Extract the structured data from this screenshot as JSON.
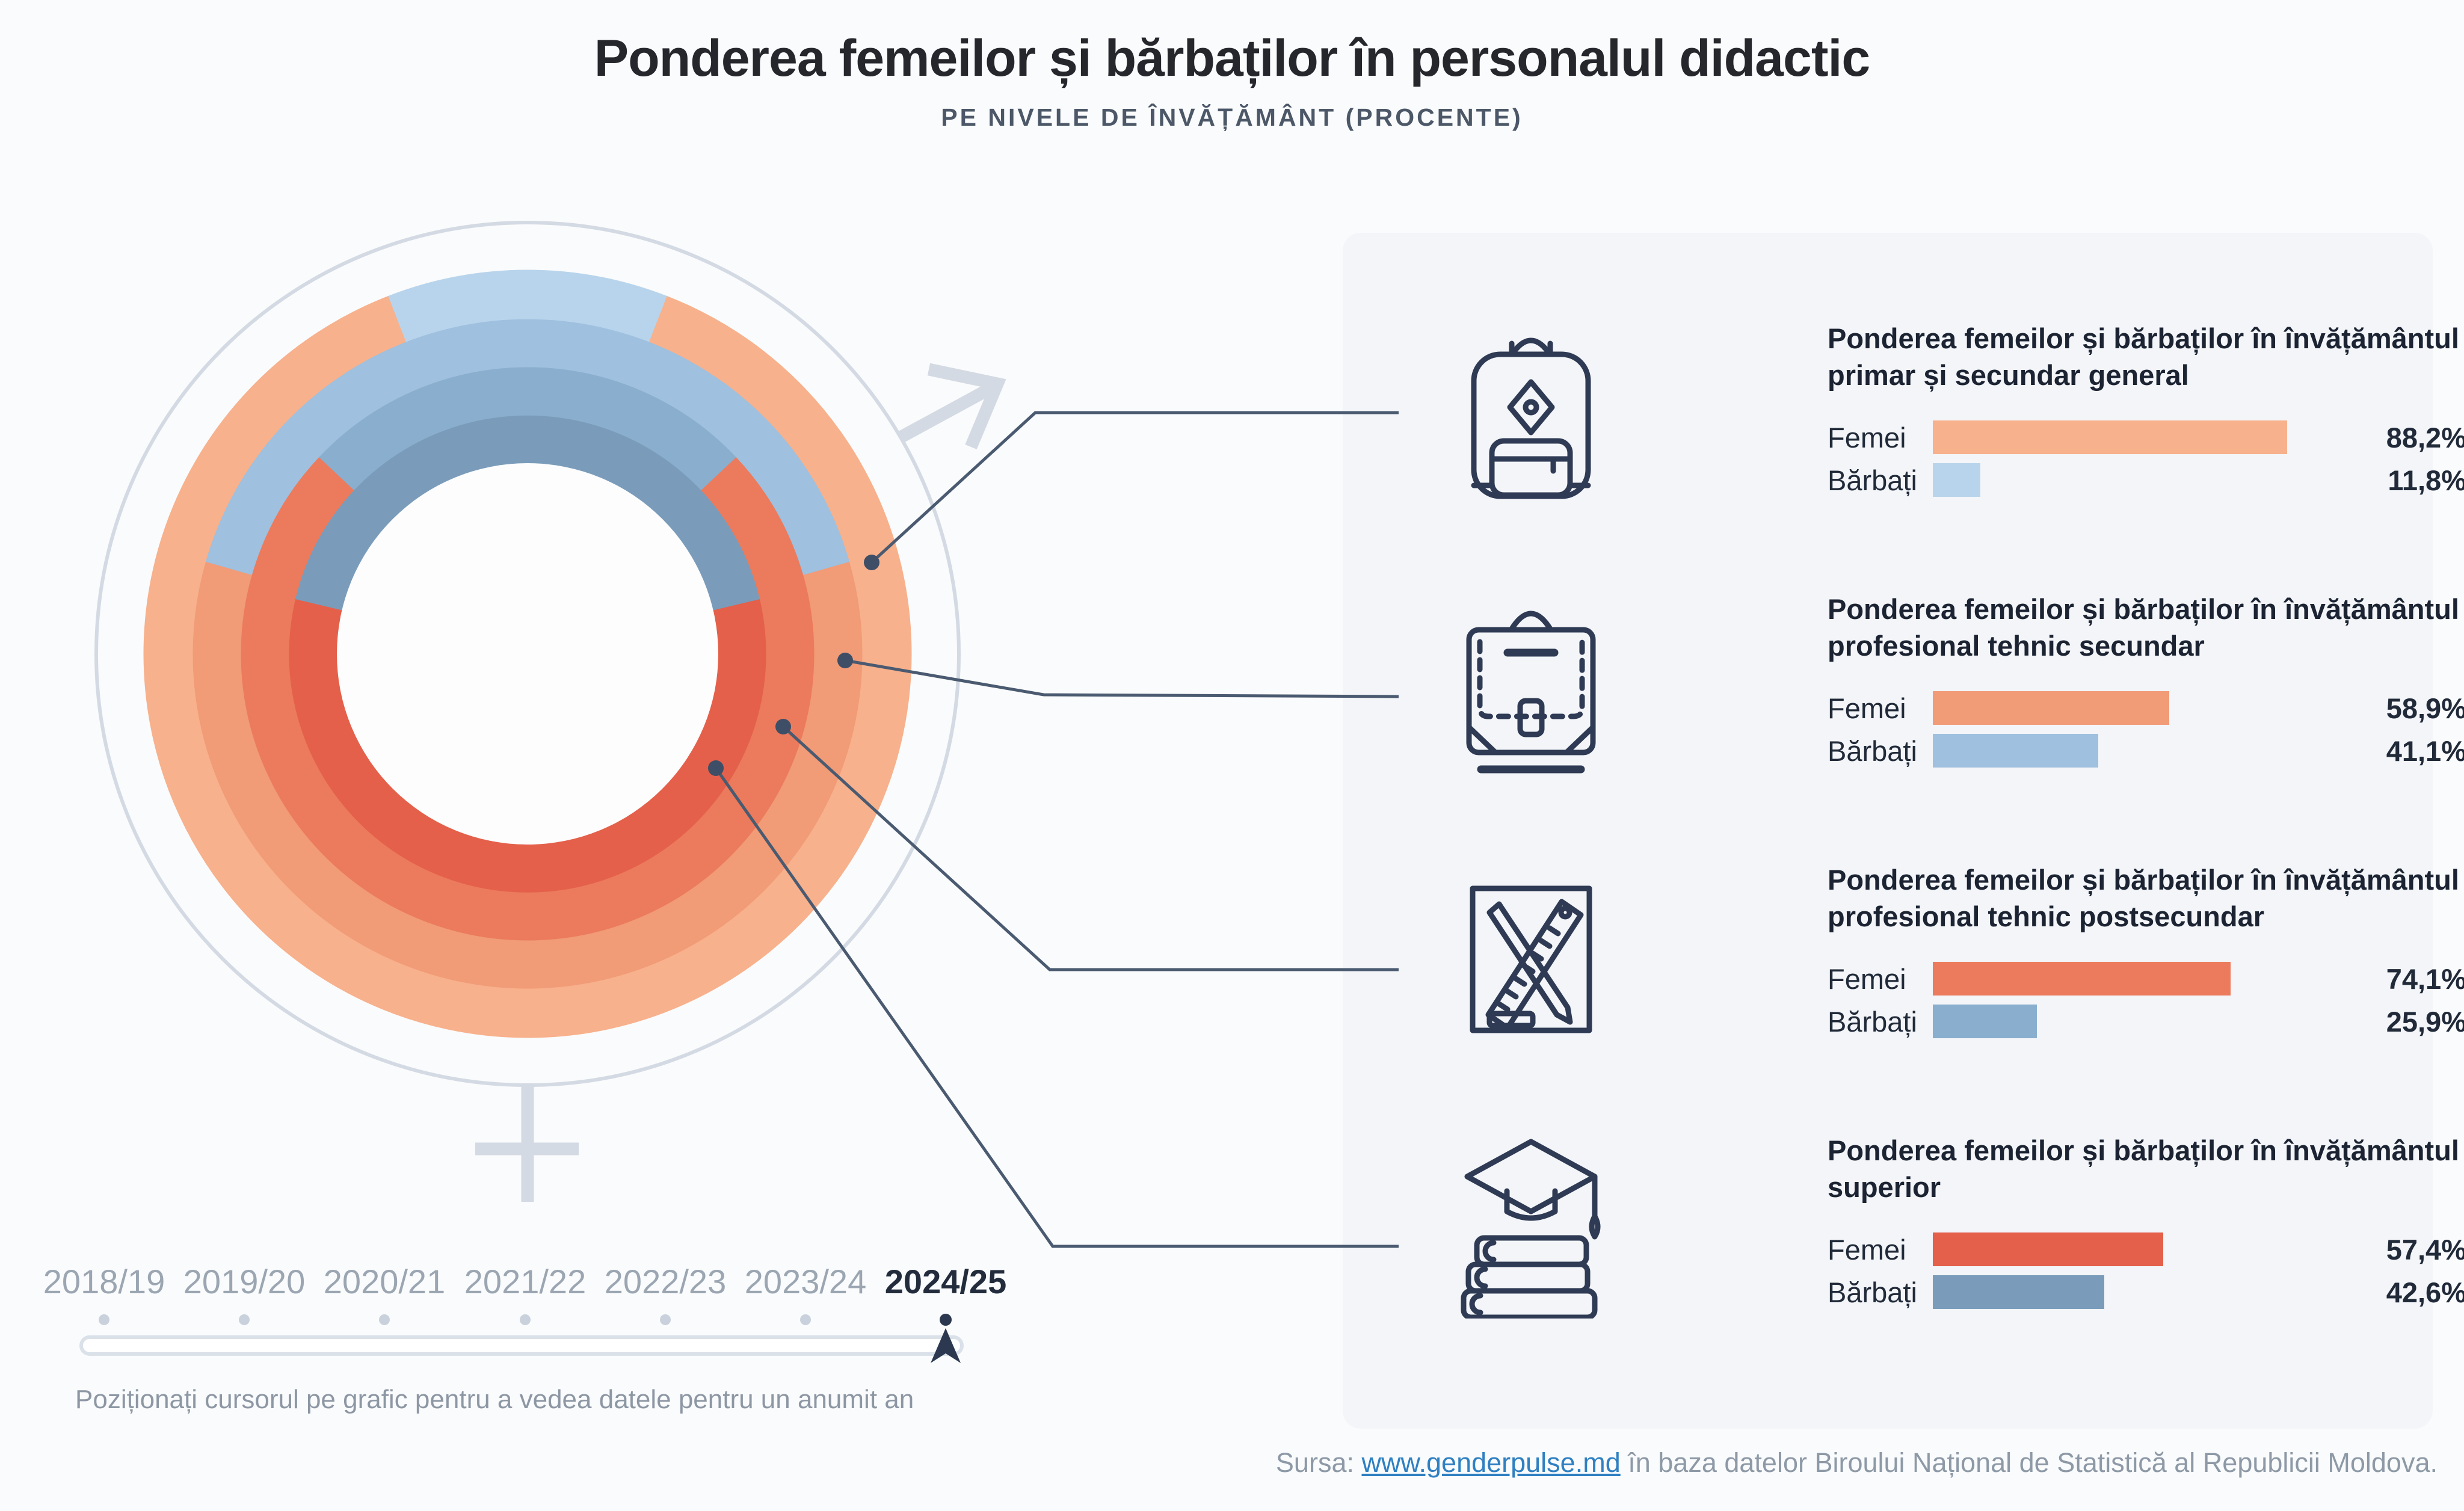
{
  "title": "Ponderea femeilor și bărbaților în personalul didactic",
  "subtitle": "PE NIVELE DE ÎNVĂȚĂMÂNT (PROCENTE)",
  "legend_labels": {
    "femei": "Femei",
    "barbati": "Bărbați"
  },
  "chart_data": {
    "type": "pie",
    "subtype": "concentric-donut-rings",
    "description": "Four concentric rings, one per education level (outer to inner). Blue segment (men) centered at 12 o'clock, warm segment (women) fills the rest.",
    "categories": [
      "învățământul primar și secundar general",
      "învățământul profesional tehnic secundar",
      "învățământul profesional tehnic postsecundar",
      "învățământul superior"
    ],
    "series": [
      {
        "heading_line1": "Ponderea femeilor și bărbaților în învățământul",
        "heading_line2": "primar și secundar general",
        "icon": "backpack-icon",
        "femei": 88.2,
        "barbati": 11.8,
        "femei_text": "88,2%",
        "barbati_text": "11,8%"
      },
      {
        "heading_line1": "Ponderea femeilor și bărbaților în învățământul",
        "heading_line2": "profesional tehnic secundar",
        "icon": "briefcase-icon",
        "femei": 58.9,
        "barbati": 41.1,
        "femei_text": "58,9%",
        "barbati_text": "41,1%"
      },
      {
        "heading_line1": "Ponderea femeilor și bărbaților în învățământul",
        "heading_line2": "profesional tehnic postsecundar",
        "icon": "pencil-ruler-icon",
        "femei": 74.1,
        "barbati": 25.9,
        "femei_text": "74,1%",
        "barbati_text": "25,9%"
      },
      {
        "heading_line1": "Ponderea femeilor și bărbaților în învățământul",
        "heading_line2": "superior",
        "icon": "graduation-cap-books-icon",
        "femei": 57.4,
        "barbati": 42.6,
        "femei_text": "57,4%",
        "barbati_text": "42,6%"
      }
    ],
    "ring_order": "outer ring = primar și secundar general, inner ring = superior",
    "legend_position": "right panel rows per level"
  },
  "timeline": {
    "years": [
      "2018/19",
      "2019/20",
      "2020/21",
      "2021/22",
      "2022/23",
      "2023/24",
      "2024/25"
    ],
    "active_year": "2024/25",
    "instruction": "Poziționați cursorul pe grafic pentru a vedea datele pentru un anumit an"
  },
  "source": {
    "prefix": "Sursa:",
    "link_text": "www.genderpulse.md",
    "suffix": "în baza datelor Biroului Național de Statistică al Republicii Moldova."
  },
  "colors": {
    "femei": [
      "#F7B18C",
      "#F19B77",
      "#EB7B5C",
      "#E4604A"
    ],
    "barbati": [
      "#B8D4EC",
      "#9FC0DE",
      "#8AAECE",
      "#7A9CBA"
    ],
    "accent_dark": "#2C3850",
    "connector": "#4A5A70",
    "symbol_gray": "#D4DAE3",
    "panel_bg": "#F3F5F8",
    "link": "#2F80C2"
  }
}
